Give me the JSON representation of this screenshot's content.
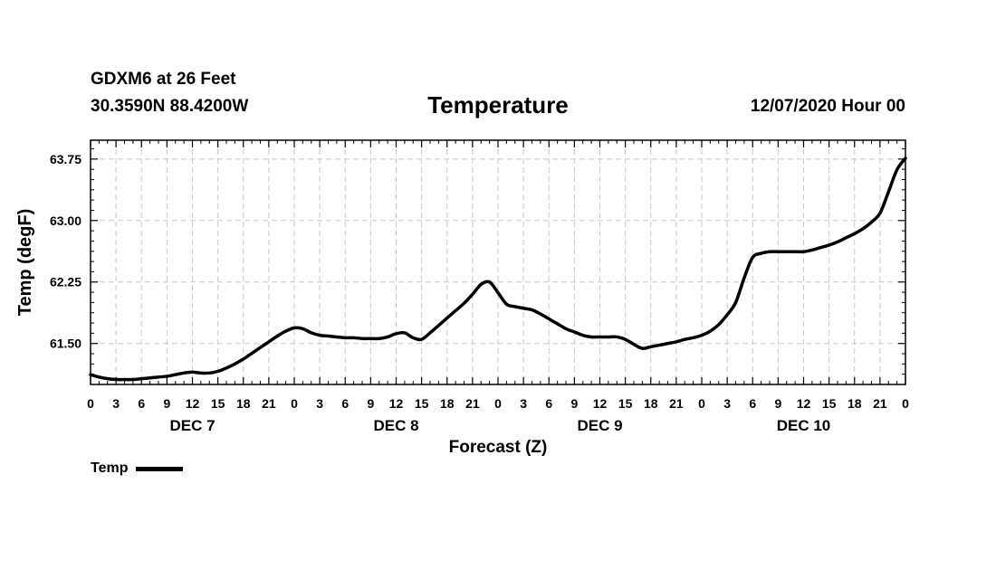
{
  "header": {
    "station": "GDXM6 at 26 Feet",
    "coordinates": "30.3590N 88.4200W",
    "run_time": "12/07/2020 Hour 00"
  },
  "chart_data": {
    "type": "line",
    "title": "Temperature",
    "xlabel": "Forecast (Z)",
    "ylabel": "Temp (degF)",
    "ylim": [
      61.0,
      63.98
    ],
    "xlim": [
      0,
      96
    ],
    "grid": true,
    "x_tick_labels": [
      "0",
      "3",
      "6",
      "9",
      "12",
      "15",
      "18",
      "21",
      "0",
      "3",
      "6",
      "9",
      "12",
      "15",
      "18",
      "21",
      "0",
      "3",
      "6",
      "9",
      "12",
      "15",
      "18",
      "21",
      "0",
      "3",
      "6",
      "9",
      "12",
      "15",
      "18",
      "21",
      "0"
    ],
    "y_tick_labels": [
      "61.50",
      "62.25",
      "63.00",
      "63.75"
    ],
    "y_ticks": [
      61.5,
      62.25,
      63.0,
      63.75
    ],
    "day_labels": [
      "DEC 7",
      "DEC 8",
      "DEC 9",
      "DEC 10"
    ],
    "legend": [
      {
        "name": "Temp",
        "placement": "bottom-left"
      }
    ],
    "series": [
      {
        "name": "Temp",
        "color": "#000000",
        "x": [
          0,
          1,
          2,
          3,
          4,
          5,
          6,
          7,
          8,
          9,
          10,
          11,
          12,
          13,
          14,
          15,
          16,
          17,
          18,
          19,
          20,
          21,
          22,
          23,
          24,
          25,
          26,
          27,
          28,
          29,
          30,
          31,
          32,
          33,
          34,
          35,
          36,
          37,
          38,
          39,
          40,
          41,
          42,
          43,
          44,
          45,
          46,
          47,
          48,
          49,
          50,
          51,
          52,
          53,
          54,
          55,
          56,
          57,
          58,
          59,
          60,
          61,
          62,
          63,
          64,
          65,
          66,
          67,
          68,
          69,
          70,
          71,
          72,
          73,
          74,
          75,
          76,
          77,
          78,
          79,
          80,
          81,
          82,
          83,
          84,
          85,
          86,
          87,
          88,
          89,
          90,
          91,
          92,
          93,
          94,
          95,
          96
        ],
        "values": [
          61.12,
          61.09,
          61.07,
          61.06,
          61.06,
          61.06,
          61.07,
          61.08,
          61.09,
          61.1,
          61.12,
          61.14,
          61.15,
          61.14,
          61.14,
          61.16,
          61.2,
          61.25,
          61.31,
          61.38,
          61.45,
          61.52,
          61.59,
          61.65,
          61.69,
          61.68,
          61.63,
          61.6,
          61.59,
          61.58,
          61.57,
          61.57,
          61.56,
          61.56,
          61.56,
          61.58,
          61.62,
          61.63,
          61.57,
          61.55,
          61.63,
          61.72,
          61.81,
          61.9,
          61.99,
          62.1,
          62.22,
          62.25,
          62.12,
          61.98,
          61.95,
          61.93,
          61.91,
          61.86,
          61.8,
          61.74,
          61.68,
          61.64,
          61.6,
          61.58,
          61.58,
          61.58,
          61.58,
          61.55,
          61.49,
          61.44,
          61.46,
          61.48,
          61.5,
          61.52,
          61.55,
          61.57,
          61.6,
          61.65,
          61.73,
          61.85,
          62.0,
          62.3,
          62.55,
          62.6,
          62.62,
          62.62,
          62.62,
          62.62,
          62.62,
          62.64,
          62.67,
          62.7,
          62.74,
          62.79,
          62.84,
          62.9,
          62.98,
          63.09,
          63.35,
          63.62,
          63.76
        ]
      }
    ]
  }
}
